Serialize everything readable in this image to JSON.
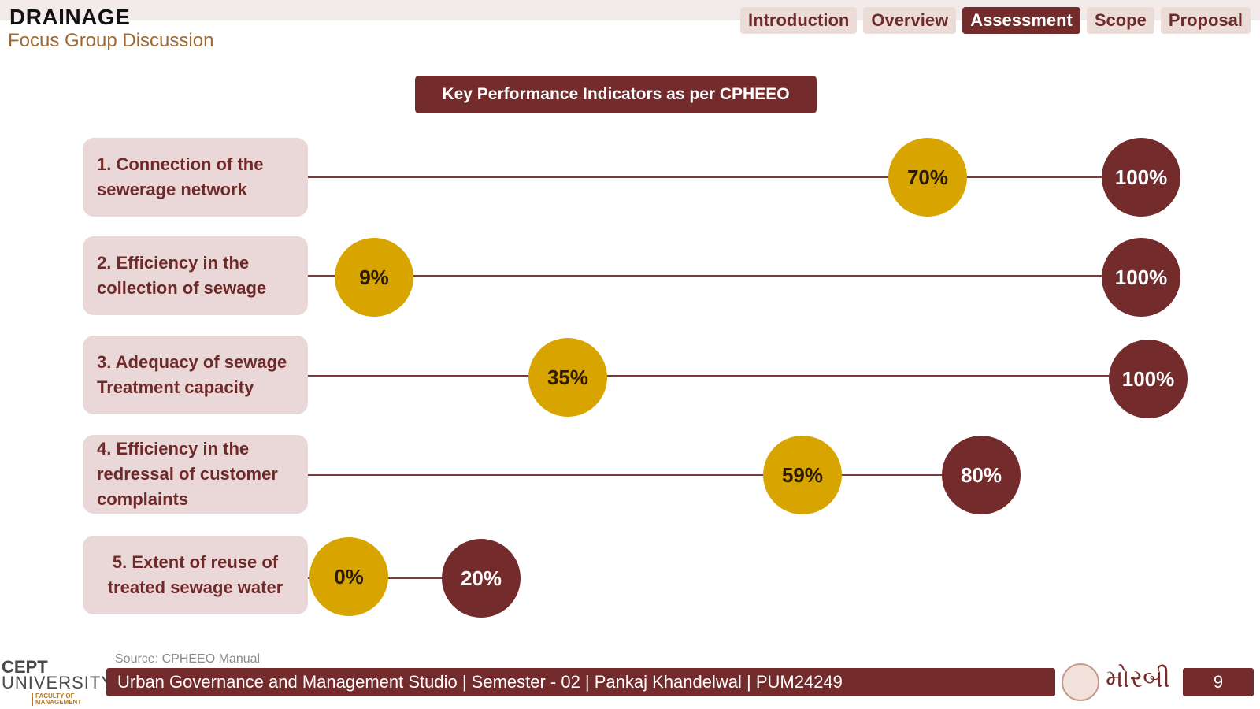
{
  "header": {
    "title": "DRAINAGE",
    "subtitle": "Focus Group Discussion"
  },
  "nav": {
    "tabs": [
      {
        "label": "Introduction",
        "active": false
      },
      {
        "label": "Overview",
        "active": false
      },
      {
        "label": "Assessment",
        "active": true
      },
      {
        "label": "Scope",
        "active": false
      },
      {
        "label": "Proposal",
        "active": false
      }
    ]
  },
  "panel_title": "Key Performance Indicators as per CPHEEO",
  "kpis": [
    {
      "label": "1. Connection of the sewerage network",
      "actual": "70%",
      "target": "100%"
    },
    {
      "label": "2. Efficiency in the collection of sewage",
      "actual": "9%",
      "target": "100%"
    },
    {
      "label": "3. Adequacy of sewage Treatment capacity",
      "actual": "35%",
      "target": "100%"
    },
    {
      "label": "4. Efficiency in the redressal of customer complaints",
      "actual": "59%",
      "target": "80%"
    },
    {
      "label": "5. Extent of reuse of treated sewage water",
      "actual": "0%",
      "target": "20%"
    }
  ],
  "source": "Source: CPHEEO Manual",
  "footer": {
    "logo_line1": "CEPT",
    "logo_line2": "UNIVERSITY",
    "logo_line3": "FACULTY OF MANAGEMENT",
    "text": "Urban Governance and Management Studio | Semester - 02 | Pankaj Khandelwal | PUM24249",
    "city": "મોરબી",
    "page_number": "9"
  },
  "colors": {
    "accent": "#742b2b",
    "actual_marker": "#d7a400",
    "label_bg": "#ead7d7",
    "subtitle": "#a0692f"
  }
}
